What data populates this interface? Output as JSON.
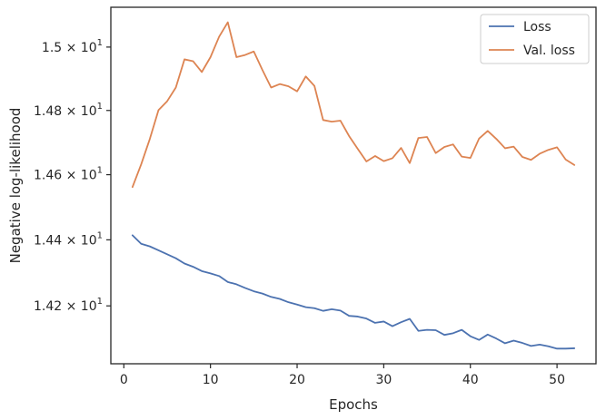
{
  "chart_data": {
    "type": "line",
    "xlabel": "Epochs",
    "ylabel": "Negative log-likelihood",
    "yscale": "log",
    "xlim": [
      -1.5,
      54.5
    ],
    "ylim": [
      14.027,
      15.127
    ],
    "x_ticks": [
      0,
      10,
      20,
      30,
      40,
      50
    ],
    "y_ticks": [
      {
        "value": 14.2,
        "mantissa": "1.42",
        "base": "10",
        "exp": "1"
      },
      {
        "value": 14.4,
        "mantissa": "1.44",
        "base": "10",
        "exp": "1"
      },
      {
        "value": 14.6,
        "mantissa": "1.46",
        "base": "10",
        "exp": "1"
      },
      {
        "value": 14.8,
        "mantissa": "1.48",
        "base": "10",
        "exp": "1"
      },
      {
        "value": 15.0,
        "mantissa": "1.5",
        "base": "10",
        "exp": "1"
      }
    ],
    "grid": false,
    "legend_position": "top-right",
    "x": [
      1,
      2,
      3,
      4,
      5,
      6,
      7,
      8,
      9,
      10,
      11,
      12,
      13,
      14,
      15,
      16,
      17,
      18,
      19,
      20,
      21,
      22,
      23,
      24,
      25,
      26,
      27,
      28,
      29,
      30,
      31,
      32,
      33,
      34,
      35,
      36,
      37,
      38,
      39,
      40,
      41,
      42,
      43,
      44,
      45,
      46,
      47,
      48,
      49,
      50,
      51,
      52
    ],
    "series": [
      {
        "name": "Loss",
        "color": "#4c72b0",
        "values": [
          14.414,
          14.388,
          14.38,
          14.368,
          14.356,
          14.344,
          14.328,
          14.318,
          14.305,
          14.298,
          14.29,
          14.272,
          14.265,
          14.254,
          14.244,
          14.237,
          14.227,
          14.221,
          14.211,
          14.204,
          14.196,
          14.193,
          14.185,
          14.19,
          14.186,
          14.17,
          14.168,
          14.162,
          14.149,
          14.153,
          14.139,
          14.151,
          14.161,
          14.125,
          14.128,
          14.127,
          14.113,
          14.118,
          14.128,
          14.109,
          14.098,
          14.114,
          14.102,
          14.088,
          14.096,
          14.089,
          14.08,
          14.084,
          14.079,
          14.072,
          14.072,
          14.073
        ]
      },
      {
        "name": "Val. loss",
        "color": "#dd8452",
        "values": [
          14.562,
          14.632,
          14.711,
          14.801,
          14.829,
          14.872,
          14.961,
          14.955,
          14.921,
          14.968,
          15.033,
          15.079,
          14.968,
          14.975,
          14.986,
          14.927,
          14.872,
          14.883,
          14.876,
          14.86,
          14.907,
          14.877,
          14.77,
          14.765,
          14.768,
          14.72,
          14.68,
          14.641,
          14.658,
          14.642,
          14.651,
          14.683,
          14.636,
          14.714,
          14.717,
          14.667,
          14.686,
          14.694,
          14.656,
          14.652,
          14.712,
          14.736,
          14.711,
          14.682,
          14.687,
          14.655,
          14.646,
          14.665,
          14.677,
          14.685,
          14.647,
          14.63
        ]
      }
    ]
  }
}
